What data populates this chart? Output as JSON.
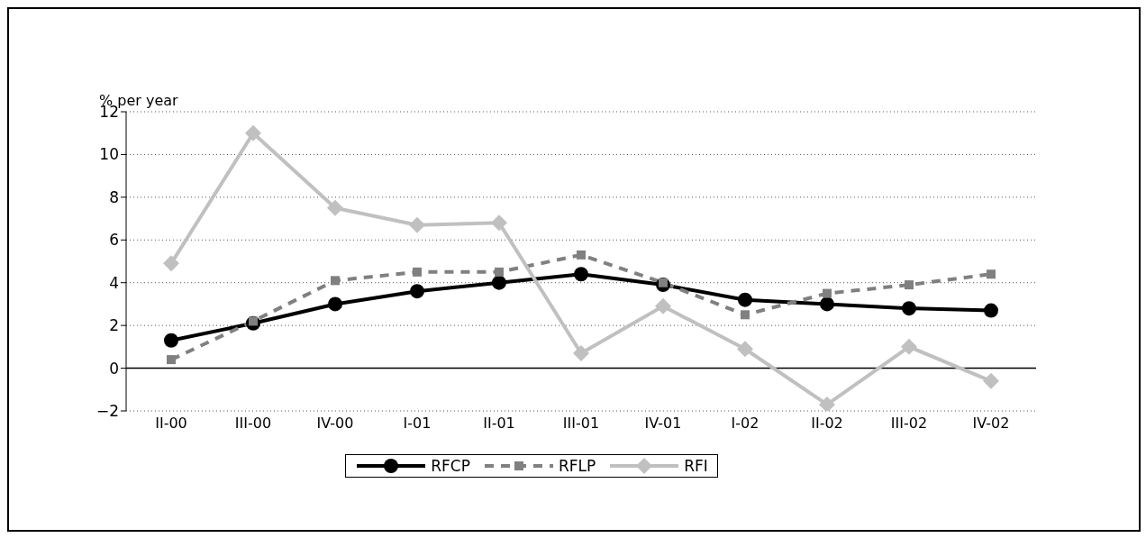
{
  "chart_data": {
    "type": "line",
    "ylabel": "% per year",
    "categories": [
      "II-00",
      "III-00",
      "IV-00",
      "I-01",
      "II-01",
      "III-01",
      "IV-01",
      "I-02",
      "II-02",
      "III-02",
      "IV-02"
    ],
    "series": [
      {
        "name": "RFCP",
        "color": "#000000",
        "marker": "circle",
        "line_style": "solid",
        "values": [
          1.3,
          2.1,
          3.0,
          3.6,
          4.0,
          4.4,
          3.9,
          3.2,
          3.0,
          2.8,
          2.7
        ]
      },
      {
        "name": "RFLP",
        "color": "#808080",
        "marker": "square",
        "line_style": "dashed",
        "values": [
          0.4,
          2.2,
          4.1,
          4.5,
          4.5,
          5.3,
          4.0,
          2.5,
          3.5,
          3.9,
          4.4
        ]
      },
      {
        "name": "RFI",
        "color": "#c0c0c0",
        "marker": "diamond",
        "line_style": "solid",
        "values": [
          4.9,
          11.0,
          7.5,
          6.7,
          6.8,
          0.7,
          2.9,
          0.9,
          -1.7,
          1.0,
          -0.6
        ]
      }
    ],
    "ylim": [
      -2,
      12
    ],
    "yticks": [
      {
        "value": -2,
        "label": "−2"
      },
      0,
      2,
      4,
      6,
      8,
      10,
      12
    ],
    "grid": "y",
    "legend": "bottom"
  }
}
